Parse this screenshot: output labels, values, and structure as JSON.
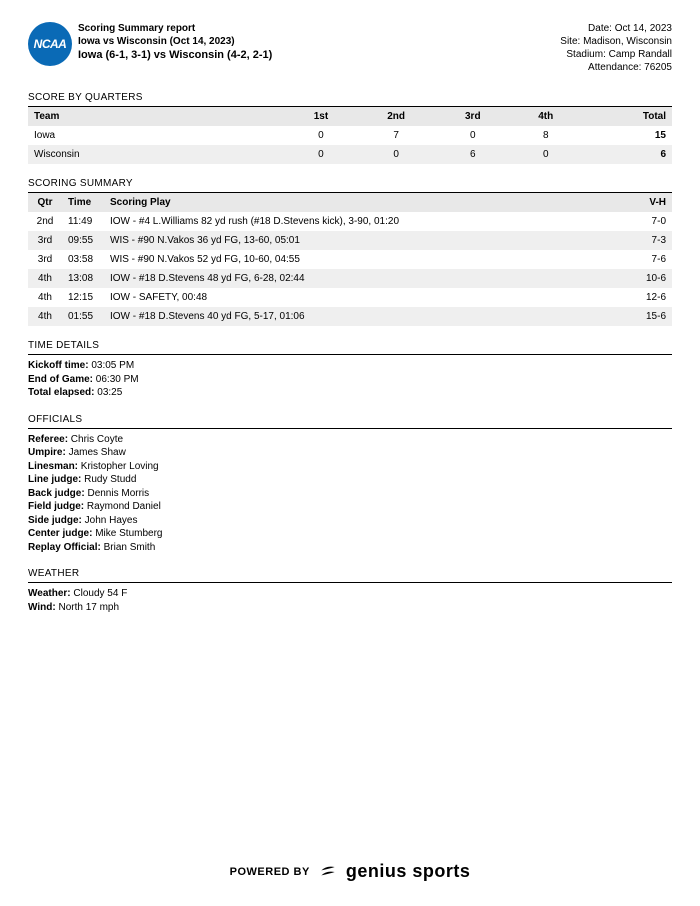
{
  "header": {
    "logo_text": "NCAA",
    "report_line1": "Scoring Summary report",
    "report_line2": "Iowa vs Wisconsin (Oct 14, 2023)",
    "matchup": "Iowa (6-1, 3-1) vs Wisconsin (4-2, 2-1)",
    "date": "Date: Oct 14, 2023",
    "site": "Site: Madison, Wisconsin",
    "stadium": "Stadium: Camp Randall",
    "attendance": "Attendance: 76205"
  },
  "score_by_quarters": {
    "title": "SCORE BY QUARTERS",
    "columns": [
      "Team",
      "1st",
      "2nd",
      "3rd",
      "4th",
      "Total"
    ],
    "rows": [
      {
        "team": "Iowa",
        "q1": "0",
        "q2": "7",
        "q3": "0",
        "q4": "8",
        "total": "15"
      },
      {
        "team": "Wisconsin",
        "q1": "0",
        "q2": "0",
        "q3": "6",
        "q4": "0",
        "total": "6"
      }
    ]
  },
  "scoring_summary": {
    "title": "SCORING SUMMARY",
    "columns": [
      "Qtr",
      "Time",
      "Scoring Play",
      "V-H"
    ],
    "rows": [
      {
        "qtr": "2nd",
        "time": "11:49",
        "play": "IOW - #4 L.Williams 82 yd rush (#18 D.Stevens kick), 3-90, 01:20",
        "vh": "7-0"
      },
      {
        "qtr": "3rd",
        "time": "09:55",
        "play": "WIS - #90 N.Vakos 36 yd FG, 13-60, 05:01",
        "vh": "7-3"
      },
      {
        "qtr": "3rd",
        "time": "03:58",
        "play": "WIS - #90 N.Vakos 52 yd FG, 10-60, 04:55",
        "vh": "7-6"
      },
      {
        "qtr": "4th",
        "time": "13:08",
        "play": "IOW - #18 D.Stevens 48 yd FG, 6-28, 02:44",
        "vh": "10-6"
      },
      {
        "qtr": "4th",
        "time": "12:15",
        "play": "IOW - SAFETY, 00:48",
        "vh": "12-6"
      },
      {
        "qtr": "4th",
        "time": "01:55",
        "play": "IOW - #18 D.Stevens 40 yd FG, 5-17, 01:06",
        "vh": "15-6"
      }
    ]
  },
  "time_details": {
    "title": "TIME DETAILS",
    "kickoff_label": "Kickoff time:",
    "kickoff": " 03:05 PM",
    "end_label": "End of Game:",
    "end": " 06:30 PM",
    "elapsed_label": "Total elapsed:",
    "elapsed": " 03:25"
  },
  "officials": {
    "title": "OFFICIALS",
    "items": [
      {
        "label": "Referee:",
        "name": " Chris Coyte"
      },
      {
        "label": "Umpire:",
        "name": " James Shaw"
      },
      {
        "label": "Linesman:",
        "name": " Kristopher Loving"
      },
      {
        "label": "Line judge:",
        "name": " Rudy Studd"
      },
      {
        "label": "Back judge:",
        "name": " Dennis Morris"
      },
      {
        "label": "Field judge:",
        "name": " Raymond Daniel"
      },
      {
        "label": "Side judge:",
        "name": " John Hayes"
      },
      {
        "label": "Center judge:",
        "name": " Mike Stumberg"
      },
      {
        "label": "Replay Official:",
        "name": " Brian Smith"
      }
    ]
  },
  "weather": {
    "title": "WEATHER",
    "weather_label": "Weather:",
    "weather": " Cloudy 54 F",
    "wind_label": "Wind:",
    "wind": " North 17 mph"
  },
  "footer": {
    "powered": "POWERED BY",
    "brand": "genius sports"
  },
  "style": {
    "header_bg": "#e8e8e8",
    "alt_bg": "#efefef",
    "logo_bg": "#0a6ab6"
  }
}
